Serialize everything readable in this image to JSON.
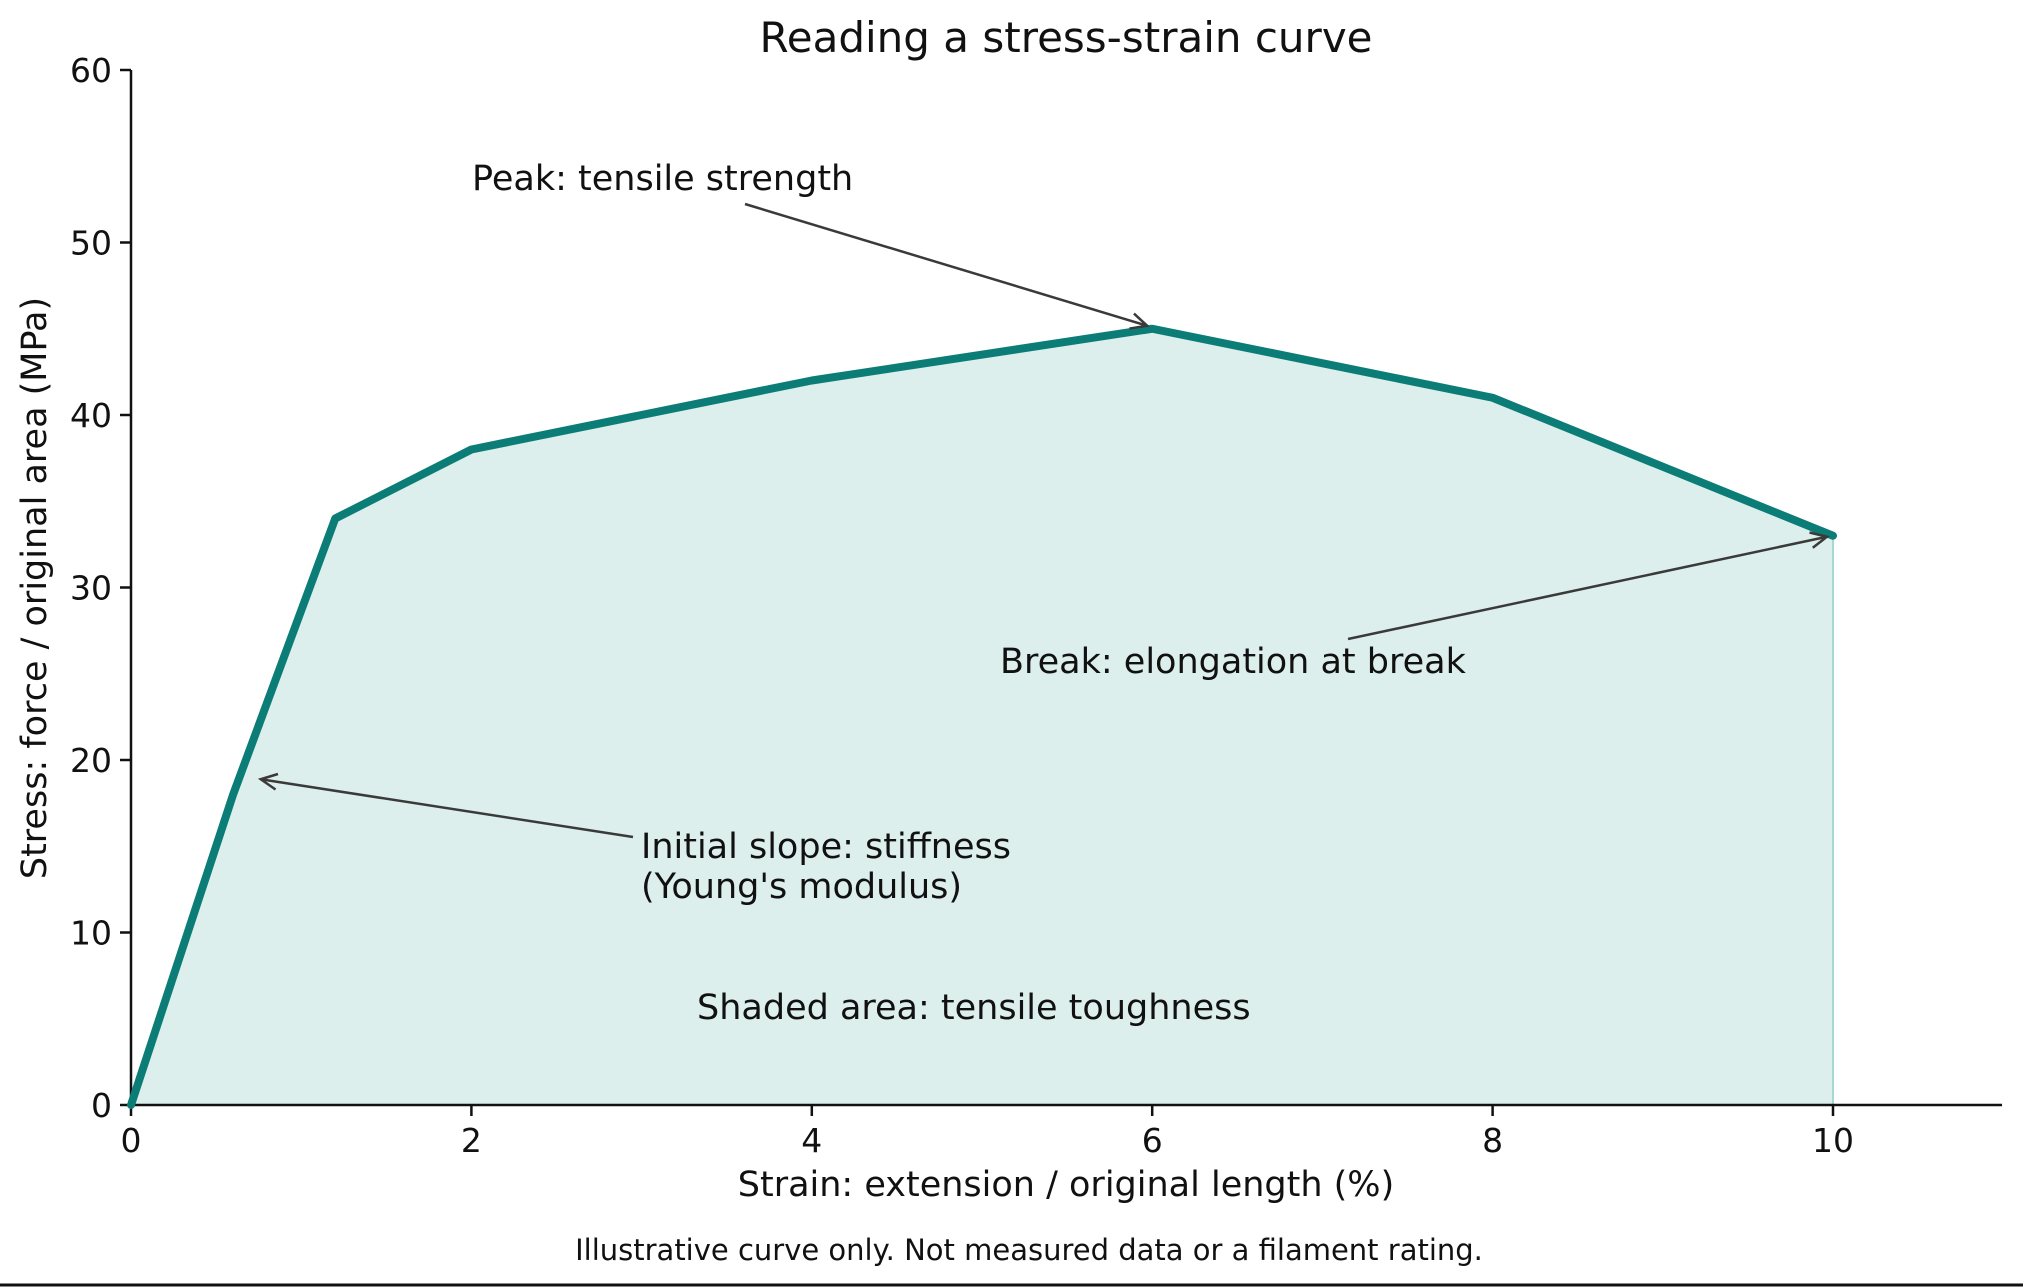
{
  "chart_data": {
    "type": "area",
    "title": "Reading a stress-strain curve",
    "xlabel": "Strain: extension / original length (%)",
    "ylabel": "Stress: force / original area (MPa)",
    "xlim": [
      0,
      11
    ],
    "ylim": [
      0,
      60
    ],
    "xticks": [
      0,
      2,
      4,
      6,
      8,
      10
    ],
    "yticks": [
      0,
      10,
      20,
      30,
      40,
      50,
      60
    ],
    "grid": false,
    "series": [
      {
        "x": [
          0,
          0.6,
          1.2,
          2,
          4,
          6,
          8,
          10
        ],
        "y": [
          0,
          18,
          34,
          38,
          42,
          45,
          41,
          33
        ]
      }
    ],
    "line_color": "#0b7d76",
    "fill_color": "#dcefec",
    "annotations": [
      {
        "id": "peak",
        "lines": [
          "Peak: tensile strength"
        ],
        "target": [
          6,
          45
        ]
      },
      {
        "id": "break",
        "lines": [
          "Break: elongation at break"
        ],
        "target": [
          10,
          33
        ]
      },
      {
        "id": "stiffness",
        "lines": [
          "Initial slope: stiffness",
          "(Young's modulus)"
        ],
        "target": [
          0.68,
          19
        ]
      },
      {
        "id": "toughness",
        "lines": [
          "Shaded area: tensile toughness"
        ]
      }
    ],
    "footnote": "Illustrative curve only. Not measured data or a filament rating."
  }
}
